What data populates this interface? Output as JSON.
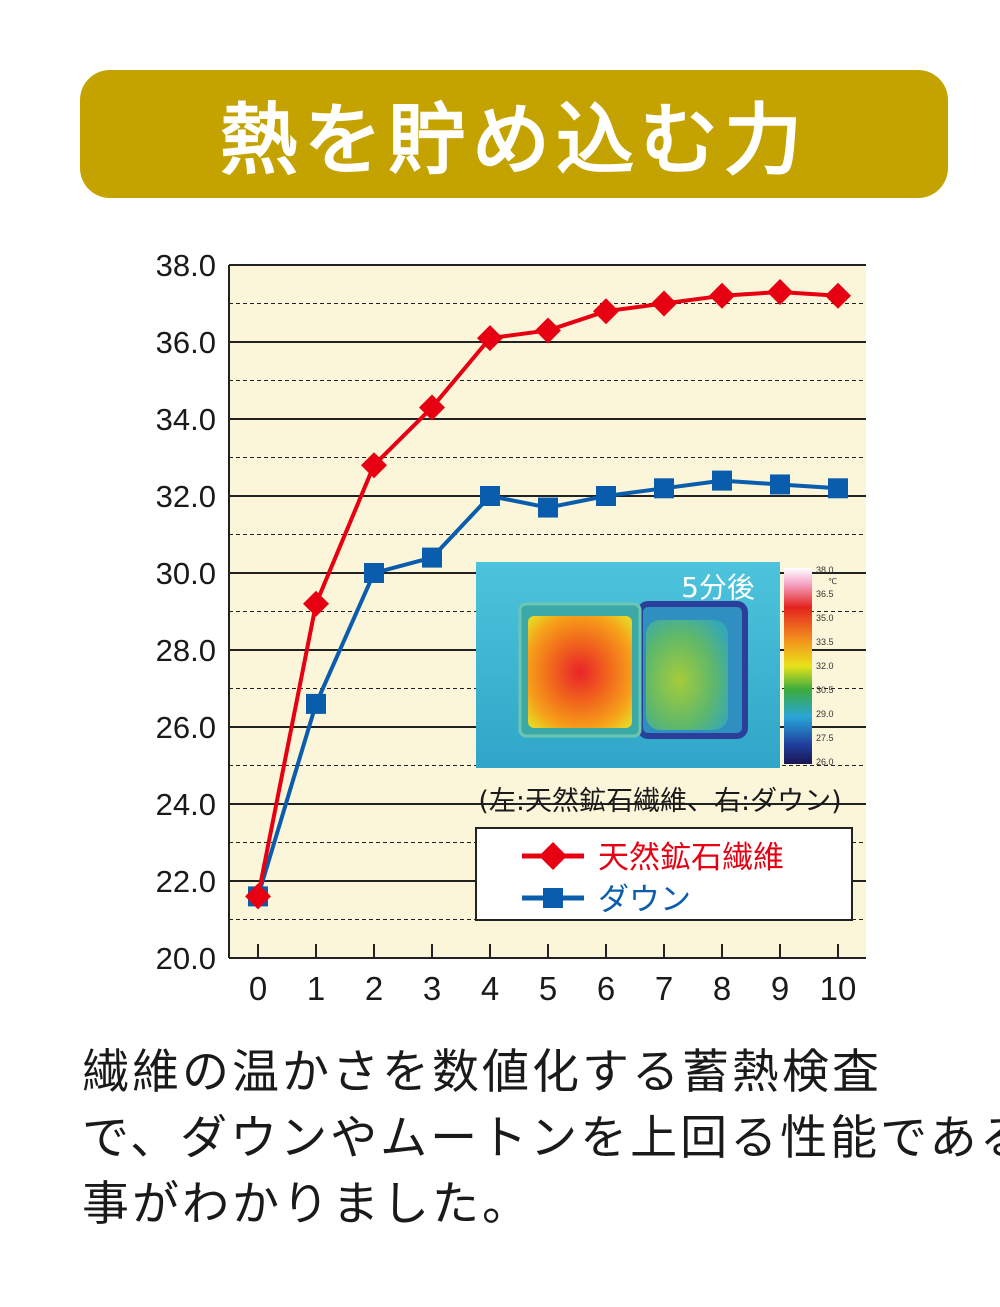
{
  "header": {
    "title": "熱を貯め込む力"
  },
  "chart_data": {
    "type": "line",
    "x": [
      0,
      1,
      2,
      3,
      4,
      5,
      6,
      7,
      8,
      9,
      10
    ],
    "xlim": [
      0,
      10
    ],
    "ylim": [
      20.0,
      38.0
    ],
    "ytick_step": 2.0,
    "ytick_labels": [
      "20.0",
      "22.0",
      "24.0",
      "26.0",
      "28.0",
      "30.0",
      "32.0",
      "34.0",
      "36.0",
      "38.0"
    ],
    "xtick_labels": [
      "0",
      "1",
      "2",
      "3",
      "4",
      "5",
      "6",
      "7",
      "8",
      "9",
      "10"
    ],
    "grid": "solid every 2.0, dashed every 1.0",
    "background": "#fbf6d9",
    "series": [
      {
        "name": "天然鉱石繊維",
        "color": "#e60012",
        "marker": "diamond",
        "values": [
          21.6,
          29.2,
          32.8,
          34.3,
          36.1,
          36.3,
          36.8,
          37.0,
          37.2,
          37.3,
          37.2
        ]
      },
      {
        "name": "ダウン",
        "color": "#0a5cad",
        "marker": "square",
        "values": [
          21.6,
          26.6,
          30.0,
          30.4,
          32.0,
          31.7,
          32.0,
          32.2,
          32.4,
          32.3,
          32.2
        ]
      }
    ],
    "legend": {
      "placement": "bottom-right"
    },
    "inset": {
      "label": "5分後",
      "caption": "(左:天然鉱石繊維、右:ダウン)",
      "scale_labels": [
        "38.0",
        "36.5",
        "35.0",
        "33.5",
        "32.0",
        "30.5",
        "29.0",
        "27.5",
        "26.0"
      ],
      "scale_unit": "℃"
    }
  },
  "caption": {
    "lines": [
      "繊維の温かさを数値化する蓄熱検査",
      "で、ダウンやムートンを上回る性能である",
      "事がわかりました。"
    ]
  },
  "colors": {
    "banner": "#c4a300",
    "red": "#e60012",
    "blue": "#0a5cad"
  }
}
